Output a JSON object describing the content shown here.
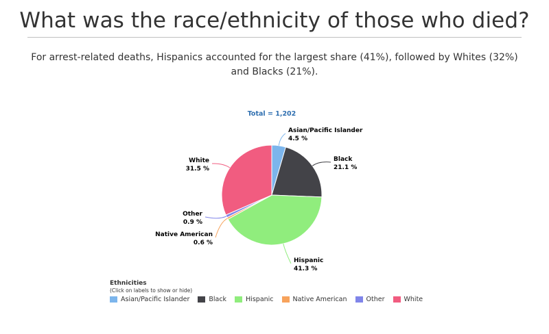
{
  "title": "What was the race/ethnicity of those who died?",
  "subtitle": "For arrest-related deaths, Hispanics accounted for the largest share (41%), followed by Whites (32%) and Blacks (21%).",
  "chart_data": {
    "type": "pie",
    "total_label": "Total = 1,202",
    "slices": [
      {
        "name": "Asian/Pacific Islander",
        "value": 4.5,
        "label": "4.5 %",
        "color": "#7cb5ec"
      },
      {
        "name": "Black",
        "value": 21.1,
        "label": "21.1 %",
        "color": "#434348"
      },
      {
        "name": "Hispanic",
        "value": 41.3,
        "label": "41.3 %",
        "color": "#90ed7d"
      },
      {
        "name": "Native American",
        "value": 0.6,
        "label": "0.6 %",
        "color": "#f7a35c"
      },
      {
        "name": "Other",
        "value": 0.9,
        "label": "0.9 %",
        "color": "#8085e9"
      },
      {
        "name": "White",
        "value": 31.5,
        "label": "31.5 %",
        "color": "#f15c80"
      }
    ],
    "legend": {
      "title": "Ethnicities",
      "hint": "(Click on labels to show or hide)",
      "placement": "bottom-left"
    }
  }
}
